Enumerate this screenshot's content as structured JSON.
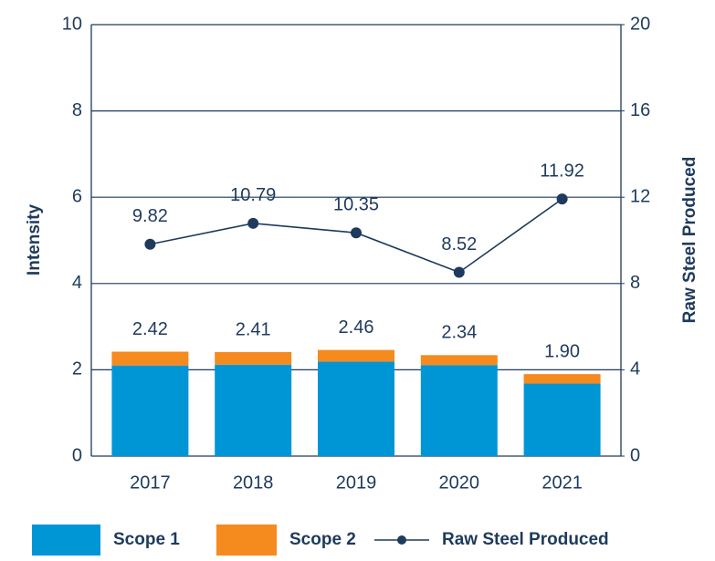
{
  "chart_data": {
    "type": "bar_line",
    "categories": [
      "2017",
      "2018",
      "2019",
      "2020",
      "2021"
    ],
    "series": [
      {
        "name": "Scope 1",
        "color": "#0096d6",
        "values": [
          2.1,
          2.12,
          2.19,
          2.11,
          1.68
        ]
      },
      {
        "name": "Scope 2",
        "color": "#f58a1f",
        "values": [
          0.32,
          0.29,
          0.27,
          0.23,
          0.22
        ]
      },
      {
        "name": "Raw Steel Produced",
        "color": "#1e3a5c",
        "axis": "y2",
        "values": [
          9.82,
          10.79,
          10.35,
          8.52,
          11.92
        ]
      }
    ],
    "totals": [
      2.42,
      2.41,
      2.46,
      2.34,
      1.9
    ],
    "total_labels": [
      "2.42",
      "2.41",
      "2.46",
      "2.34",
      "1.90"
    ],
    "ylabel": "Intensity",
    "y2label": "Raw Steel Produced",
    "ylim": [
      0,
      10
    ],
    "yticks": [
      0,
      2,
      4,
      6,
      8,
      10
    ],
    "y2lim": [
      0,
      20
    ],
    "y2ticks": [
      0,
      4,
      8,
      12,
      16,
      20
    ],
    "grid": true
  }
}
